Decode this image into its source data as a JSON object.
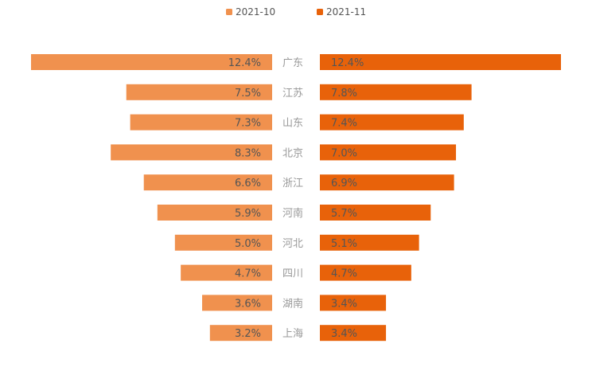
{
  "chart_data": {
    "type": "bar",
    "layout": "butterfly",
    "categories": [
      "广东",
      "江苏",
      "山东",
      "北京",
      "浙江",
      "河南",
      "河北",
      "四川",
      "湖南",
      "上海"
    ],
    "series": [
      {
        "name": "2021-10",
        "color": "#F0914E",
        "values": [
          12.4,
          7.5,
          7.3,
          8.3,
          6.6,
          5.9,
          5.0,
          4.7,
          3.6,
          3.2
        ],
        "labels": [
          "12.4%",
          "7.5%",
          "7.3%",
          "8.3%",
          "6.6%",
          "5.9%",
          "5.0%",
          "4.7%",
          "3.6%",
          "3.2%"
        ]
      },
      {
        "name": "2021-11",
        "color": "#E8620A",
        "values": [
          12.4,
          7.8,
          7.4,
          7.0,
          6.9,
          5.7,
          5.1,
          4.7,
          3.4,
          3.4
        ],
        "labels": [
          "12.4%",
          "7.8%",
          "7.4%",
          "7.0%",
          "6.9%",
          "5.7%",
          "5.1%",
          "4.7%",
          "3.4%",
          "3.4%"
        ]
      }
    ],
    "legend_position": "top-center",
    "grid": false
  }
}
